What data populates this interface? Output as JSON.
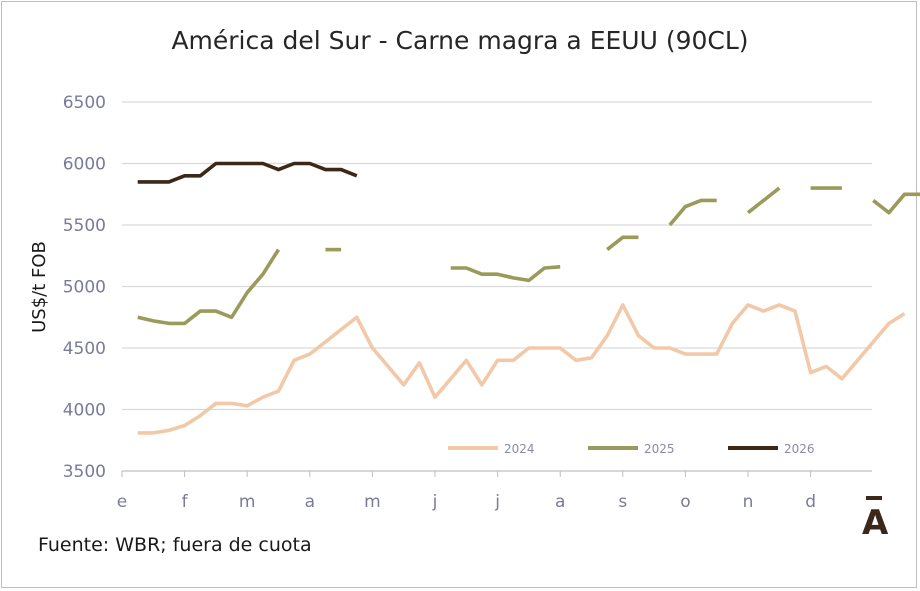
{
  "chart_data": {
    "type": "line",
    "title": "América del Sur - Carne magra a EEUU (90CL)",
    "ylabel": "US$/t FOB",
    "xlabel": "",
    "source": "Fuente: WBR; fuera de cuota",
    "ylim": [
      3500,
      6500
    ],
    "yticks": [
      3500,
      4000,
      4500,
      5000,
      5500,
      6000,
      6500
    ],
    "xlim": [
      0,
      12.4
    ],
    "xticks": [
      0,
      1,
      2,
      3,
      4,
      5,
      6,
      7,
      8,
      9,
      10,
      11
    ],
    "xtick_labels": [
      "e",
      "f",
      "m",
      "a",
      "m",
      "j",
      "j",
      "a",
      "s",
      "o",
      "n",
      "d"
    ],
    "legend_position": "bottom-right",
    "series": [
      {
        "name": "2024",
        "color": "#f2c9a8",
        "points": [
          [
            0.25,
            3810
          ],
          [
            0.5,
            3810
          ],
          [
            0.75,
            3830
          ],
          [
            1.0,
            3870
          ],
          [
            1.25,
            3950
          ],
          [
            1.5,
            4050
          ],
          [
            1.75,
            4050
          ],
          [
            2.0,
            4030
          ],
          [
            2.25,
            4100
          ],
          [
            2.5,
            4150
          ],
          [
            2.75,
            4400
          ],
          [
            3.0,
            4450
          ],
          [
            3.25,
            4550
          ],
          [
            3.5,
            4650
          ],
          [
            3.75,
            4750
          ],
          [
            4.0,
            4500
          ],
          [
            4.25,
            4350
          ],
          [
            4.5,
            4200
          ],
          [
            4.75,
            4380
          ],
          [
            5.0,
            4100
          ],
          [
            5.25,
            4250
          ],
          [
            5.5,
            4400
          ],
          [
            5.75,
            4200
          ],
          [
            6.0,
            4400
          ],
          [
            6.25,
            4400
          ],
          [
            6.5,
            4500
          ],
          [
            6.75,
            4500
          ],
          [
            7.0,
            4500
          ],
          [
            7.25,
            4400
          ],
          [
            7.5,
            4420
          ],
          [
            7.75,
            4600
          ],
          [
            8.0,
            4850
          ],
          [
            8.25,
            4600
          ],
          [
            8.5,
            4500
          ],
          [
            8.75,
            4500
          ],
          [
            9.0,
            4450
          ],
          [
            9.25,
            4450
          ],
          [
            9.5,
            4450
          ],
          [
            9.75,
            4700
          ],
          [
            10.0,
            4850
          ],
          [
            10.25,
            4800
          ],
          [
            10.5,
            4850
          ],
          [
            10.75,
            4800
          ],
          [
            11.0,
            4300
          ],
          [
            11.25,
            4350
          ],
          [
            11.5,
            4250
          ],
          [
            11.75,
            4400
          ],
          [
            12.0,
            4550
          ],
          [
            12.25,
            4700
          ],
          [
            12.5,
            4780
          ]
        ]
      },
      {
        "name": "2025",
        "color": "#9a9a5a",
        "segments": [
          [
            [
              0.25,
              4750
            ],
            [
              0.5,
              4720
            ],
            [
              0.75,
              4700
            ],
            [
              1.0,
              4700
            ],
            [
              1.25,
              4800
            ],
            [
              1.5,
              4800
            ],
            [
              1.75,
              4750
            ],
            [
              2.0,
              4950
            ],
            [
              2.25,
              5100
            ],
            [
              2.5,
              5300
            ]
          ],
          [
            [
              3.25,
              5300
            ],
            [
              3.5,
              5300
            ]
          ],
          [
            [
              5.25,
              5150
            ],
            [
              5.5,
              5150
            ],
            [
              5.75,
              5100
            ],
            [
              6.0,
              5100
            ],
            [
              6.25,
              5070
            ],
            [
              6.5,
              5050
            ],
            [
              6.75,
              5150
            ],
            [
              7.0,
              5160
            ]
          ],
          [
            [
              7.75,
              5300
            ],
            [
              8.0,
              5400
            ],
            [
              8.25,
              5400
            ]
          ],
          [
            [
              8.75,
              5500
            ],
            [
              9.0,
              5650
            ],
            [
              9.25,
              5700
            ],
            [
              9.5,
              5700
            ]
          ],
          [
            [
              10.0,
              5600
            ],
            [
              10.25,
              5700
            ],
            [
              10.5,
              5800
            ]
          ],
          [
            [
              11.0,
              5800
            ],
            [
              11.25,
              5800
            ],
            [
              11.5,
              5800
            ]
          ],
          [
            [
              12.0,
              5700
            ],
            [
              12.25,
              5600
            ],
            [
              12.5,
              5750
            ],
            [
              12.75,
              5750
            ]
          ]
        ]
      },
      {
        "name": "2026",
        "color": "#3b2818",
        "points": [
          [
            0.25,
            5850
          ],
          [
            0.5,
            5850
          ],
          [
            0.75,
            5850
          ],
          [
            1.0,
            5900
          ],
          [
            1.25,
            5900
          ],
          [
            1.5,
            6000
          ],
          [
            1.75,
            6000
          ],
          [
            2.0,
            6000
          ],
          [
            2.25,
            6000
          ],
          [
            2.5,
            5950
          ],
          [
            2.75,
            6000
          ],
          [
            3.0,
            6000
          ],
          [
            3.25,
            5950
          ],
          [
            3.5,
            5950
          ],
          [
            3.75,
            5900
          ]
        ]
      }
    ]
  },
  "colors": {
    "grid": "#d9d9d9",
    "axis": "#bfbfbf",
    "logo": "#3b2818"
  },
  "logo_letter": "Ā"
}
